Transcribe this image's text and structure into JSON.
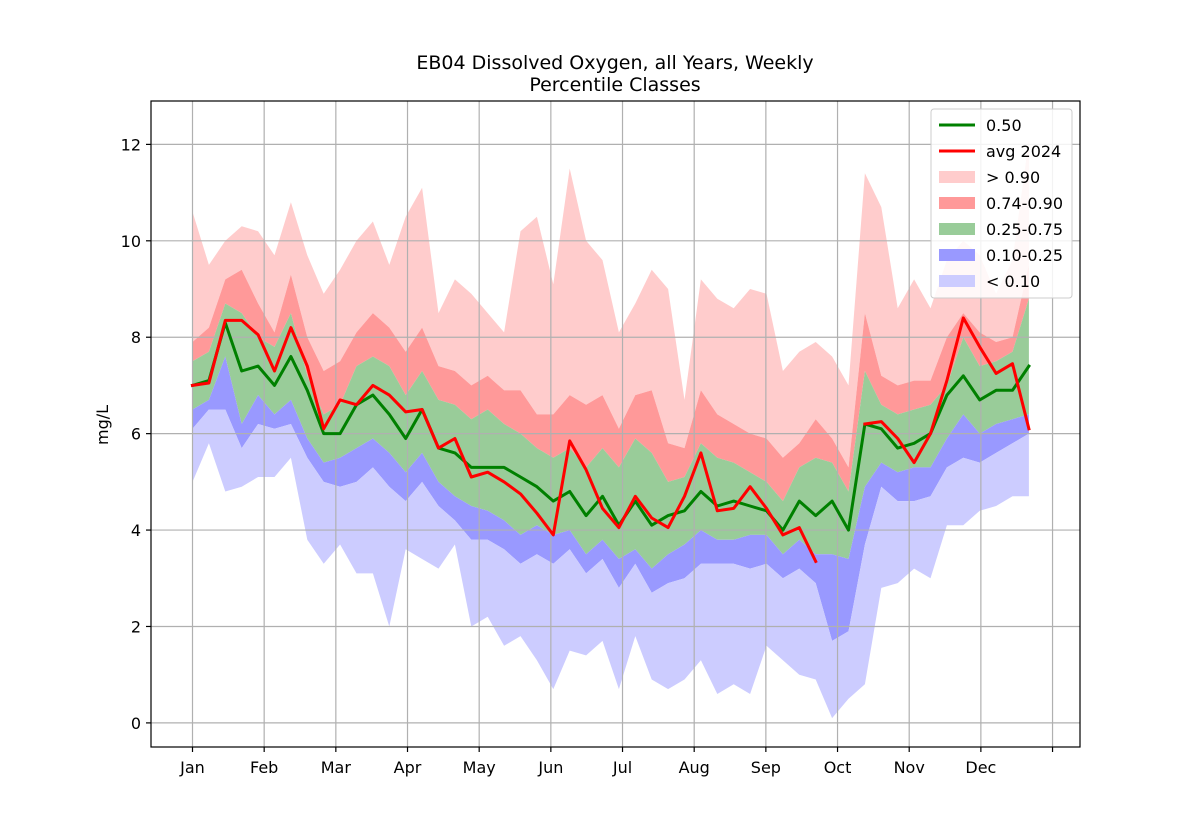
{
  "chart_data": {
    "type": "area",
    "title": "EB04 Dissolved Oxygen, all Years, Weekly",
    "subtitle": "Percentile Classes",
    "ylabel": "mg/L",
    "xlabel": "",
    "ylim": [
      -0.5,
      12.9
    ],
    "yticks": [
      0,
      2,
      4,
      6,
      8,
      10,
      12
    ],
    "grid": true,
    "legend_position": "top-right",
    "month_labels": [
      "Jan",
      "Feb",
      "Mar",
      "Apr",
      "May",
      "Jun",
      "Jul",
      "Aug",
      "Sep",
      "Oct",
      "Nov",
      "Dec",
      ""
    ],
    "weeks": [
      1,
      2,
      3,
      4,
      5,
      6,
      7,
      8,
      9,
      10,
      11,
      12,
      13,
      14,
      15,
      16,
      17,
      18,
      19,
      20,
      21,
      22,
      23,
      24,
      25,
      26,
      27,
      28,
      29,
      30,
      31,
      32,
      33,
      34,
      35,
      36,
      37,
      38,
      39,
      40,
      41,
      42,
      43,
      44,
      45,
      46,
      47,
      48,
      49,
      50,
      51,
      52
    ],
    "percentiles": {
      "min": [
        5.0,
        5.8,
        4.8,
        4.9,
        5.1,
        5.1,
        5.5,
        3.8,
        3.3,
        3.7,
        3.1,
        3.1,
        2.0,
        3.6,
        3.4,
        3.2,
        3.7,
        2.0,
        2.2,
        1.6,
        1.8,
        1.3,
        0.7,
        1.5,
        1.4,
        1.7,
        0.7,
        1.8,
        0.9,
        0.7,
        0.9,
        1.3,
        0.6,
        0.8,
        0.6,
        1.6,
        1.3,
        1.0,
        0.9,
        0.1,
        0.5,
        0.8,
        2.8,
        2.9,
        3.2,
        3.0,
        4.1,
        4.1,
        4.4,
        4.5,
        4.7,
        4.7
      ],
      "p10": [
        6.1,
        6.5,
        6.5,
        5.7,
        6.2,
        6.1,
        6.2,
        5.5,
        5.0,
        4.9,
        5.0,
        5.3,
        4.9,
        4.6,
        5.0,
        4.5,
        4.2,
        3.8,
        3.8,
        3.6,
        3.3,
        3.5,
        3.3,
        3.6,
        3.1,
        3.4,
        2.8,
        3.3,
        2.7,
        2.9,
        3.0,
        3.3,
        3.3,
        3.3,
        3.2,
        3.3,
        3.0,
        3.2,
        2.9,
        1.7,
        1.9,
        3.7,
        4.9,
        4.6,
        4.6,
        4.7,
        5.3,
        5.5,
        5.4,
        5.6,
        5.8,
        6.0
      ],
      "p25": [
        6.5,
        6.7,
        7.6,
        6.2,
        6.8,
        6.4,
        6.7,
        5.9,
        5.4,
        5.5,
        5.7,
        5.9,
        5.6,
        5.2,
        5.6,
        5.0,
        4.7,
        4.5,
        4.4,
        4.2,
        3.9,
        4.1,
        3.9,
        4.0,
        3.5,
        3.8,
        3.4,
        3.6,
        3.2,
        3.5,
        3.7,
        4.0,
        3.8,
        3.8,
        3.9,
        3.9,
        3.5,
        3.8,
        3.5,
        3.5,
        3.4,
        4.9,
        5.4,
        5.2,
        5.3,
        5.3,
        5.9,
        6.4,
        6.0,
        6.2,
        6.3,
        6.4
      ],
      "p75": [
        7.5,
        7.7,
        8.7,
        8.5,
        8.0,
        7.8,
        8.5,
        7.2,
        6.4,
        6.6,
        7.4,
        7.6,
        7.4,
        6.8,
        7.3,
        6.7,
        6.6,
        6.3,
        6.5,
        6.2,
        6.0,
        5.7,
        5.5,
        5.7,
        5.3,
        5.7,
        5.3,
        5.9,
        5.6,
        5.0,
        5.1,
        5.8,
        5.5,
        5.4,
        5.2,
        5.0,
        4.6,
        5.3,
        5.5,
        5.4,
        4.8,
        7.3,
        6.6,
        6.4,
        6.5,
        6.6,
        7.0,
        8.0,
        7.4,
        7.5,
        7.7,
        8.8
      ],
      "p90": [
        7.9,
        8.2,
        9.2,
        9.4,
        8.7,
        8.1,
        9.3,
        8.0,
        7.3,
        7.5,
        8.1,
        8.5,
        8.2,
        7.7,
        8.2,
        7.4,
        7.3,
        7.0,
        7.2,
        6.9,
        6.9,
        6.4,
        6.4,
        6.8,
        6.6,
        6.8,
        6.1,
        6.8,
        6.9,
        5.8,
        5.7,
        6.9,
        6.4,
        6.2,
        6.0,
        5.9,
        5.5,
        5.8,
        6.3,
        5.9,
        5.3,
        8.5,
        7.2,
        7.0,
        7.1,
        7.1,
        8.0,
        8.5,
        8.1,
        7.9,
        8.0,
        9.5
      ],
      "max": [
        10.6,
        9.5,
        10.0,
        10.3,
        10.2,
        9.7,
        10.8,
        9.7,
        8.9,
        9.4,
        10.0,
        10.4,
        9.5,
        10.5,
        11.1,
        8.5,
        9.2,
        8.9,
        8.5,
        8.1,
        10.2,
        10.5,
        9.1,
        11.5,
        10.0,
        9.6,
        8.1,
        8.7,
        9.4,
        9.0,
        6.7,
        9.2,
        8.8,
        8.6,
        9.0,
        8.9,
        7.3,
        7.7,
        7.9,
        7.6,
        7.0,
        11.4,
        10.7,
        8.6,
        9.2,
        8.6,
        9.6,
        10.0,
        9.7,
        8.9,
        9.6,
        12.1
      ]
    },
    "series": [
      {
        "name": "0.50",
        "color": "#008000",
        "x": [
          1,
          2,
          3,
          4,
          5,
          6,
          7,
          8,
          9,
          10,
          11,
          12,
          13,
          14,
          15,
          16,
          17,
          18,
          19,
          20,
          21,
          22,
          23,
          24,
          25,
          26,
          27,
          28,
          29,
          30,
          31,
          32,
          33,
          34,
          35,
          36,
          37,
          38,
          39,
          40,
          41,
          42,
          43,
          44,
          45,
          46,
          47,
          48,
          49,
          50,
          51,
          52
        ],
        "values": [
          7.0,
          7.1,
          8.3,
          7.3,
          7.4,
          7.0,
          7.6,
          6.9,
          6.0,
          6.0,
          6.6,
          6.8,
          6.4,
          5.9,
          6.5,
          5.7,
          5.6,
          5.3,
          5.3,
          5.3,
          5.1,
          4.9,
          4.6,
          4.8,
          4.3,
          4.7,
          4.1,
          4.6,
          4.1,
          4.3,
          4.4,
          4.8,
          4.5,
          4.6,
          4.5,
          4.4,
          4.0,
          4.6,
          4.3,
          4.6,
          4.0,
          6.2,
          6.1,
          5.7,
          5.8,
          6.0,
          6.8,
          7.2,
          6.7,
          6.9,
          6.9,
          7.4
        ]
      },
      {
        "name": "avg 2024",
        "color": "#ff0000",
        "x": [
          1,
          2,
          3,
          4,
          5,
          6,
          7,
          8,
          9,
          10,
          11,
          12,
          13,
          14,
          15,
          16,
          17,
          18,
          19,
          20,
          21,
          22,
          23,
          24,
          25,
          26,
          27,
          28,
          29,
          30,
          31,
          32,
          33,
          34,
          35,
          36,
          37,
          38,
          39,
          40,
          41,
          42,
          43,
          44,
          45,
          46,
          47,
          48,
          49,
          50,
          51,
          52
        ],
        "values": [
          7.0,
          7.05,
          8.35,
          8.35,
          8.05,
          7.3,
          8.2,
          7.4,
          6.1,
          6.7,
          6.6,
          7.0,
          6.8,
          6.45,
          6.5,
          5.7,
          5.9,
          5.1,
          5.2,
          5.0,
          4.75,
          4.35,
          3.9,
          5.85,
          5.25,
          4.45,
          4.05,
          4.7,
          4.25,
          4.05,
          4.7,
          5.6,
          4.4,
          4.45,
          4.9,
          4.45,
          3.9,
          4.05,
          3.35,
          null,
          null,
          6.2,
          6.25,
          5.9,
          5.4,
          6.0,
          7.1,
          8.4,
          7.8,
          7.25,
          7.45,
          6.1
        ]
      }
    ],
    "bands": [
      {
        "name": "> 0.90",
        "color": "#ffcccc",
        "from": "p90",
        "to": "max"
      },
      {
        "name": "0.74-0.90",
        "color": "#ff9999",
        "from": "p75",
        "to": "p90"
      },
      {
        "name": "0.25-0.75",
        "color": "#99cc99",
        "from": "p25",
        "to": "p75"
      },
      {
        "name": "0.10-0.25",
        "color": "#9999ff",
        "from": "p10",
        "to": "p25"
      },
      {
        "name": "< 0.10",
        "color": "#ccccff",
        "from": "min",
        "to": "p10"
      }
    ],
    "legend": [
      "0.50",
      "avg 2024",
      "> 0.90",
      "0.74-0.90",
      "0.25-0.75",
      "0.10-0.25",
      "< 0.10"
    ]
  }
}
